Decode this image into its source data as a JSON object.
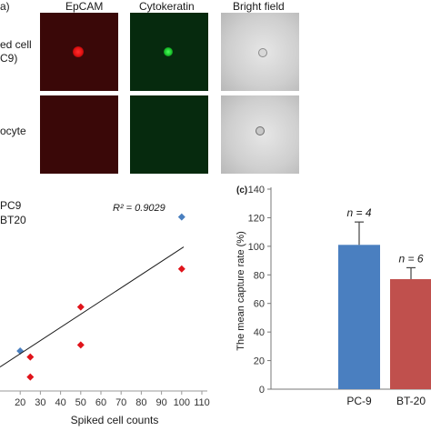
{
  "panel_a": {
    "label": "a)",
    "columns": [
      "EpCAM",
      "Cytokeratin",
      "Bright field"
    ],
    "rows": [
      {
        "label_line1": "ed cell",
        "label_line2": "C9)"
      },
      {
        "label_line1": "ocyte",
        "label_line2": ""
      }
    ]
  },
  "colors": {
    "pc9": "#4a7fbf",
    "bt20": "#e0141b",
    "bar_pc9": "#4a7fc0",
    "bar_bt20": "#c0504d",
    "epcam_bg": "#3a0808",
    "cyto_bg": "#062a0e"
  },
  "chart_data": [
    {
      "type": "scatter",
      "legend": [
        "PC9",
        "BT20"
      ],
      "annotation": "R² = 0.9029",
      "xlabel": "Spiked cell counts",
      "ylabel": "",
      "xlim": [
        10,
        110
      ],
      "ylim": [
        0,
        100
      ],
      "xticks": [
        20,
        30,
        40,
        50,
        60,
        70,
        80,
        90,
        100,
        110
      ],
      "series": [
        {
          "name": "PC9",
          "marker": "diamond",
          "points": [
            [
              20,
              20
            ],
            [
              100,
              87
            ]
          ]
        },
        {
          "name": "BT20",
          "marker": "diamond",
          "points": [
            [
              25,
              17
            ],
            [
              25,
              7
            ],
            [
              50,
              42
            ],
            [
              50,
              23
            ],
            [
              100,
              61
            ]
          ]
        }
      ],
      "trendline": [
        [
          10,
          12
        ],
        [
          101,
          72
        ]
      ]
    },
    {
      "type": "bar",
      "panel_label": "(c)",
      "categories": [
        "PC-9",
        "BT-20"
      ],
      "values": [
        101,
        77
      ],
      "errors": [
        16,
        8
      ],
      "bar_labels": [
        "n = 4",
        "n = 6"
      ],
      "ylabel": "The mean capture rate (%)",
      "ylim": [
        0,
        140
      ],
      "yticks": [
        0,
        20,
        40,
        60,
        80,
        100,
        120,
        140
      ]
    }
  ]
}
